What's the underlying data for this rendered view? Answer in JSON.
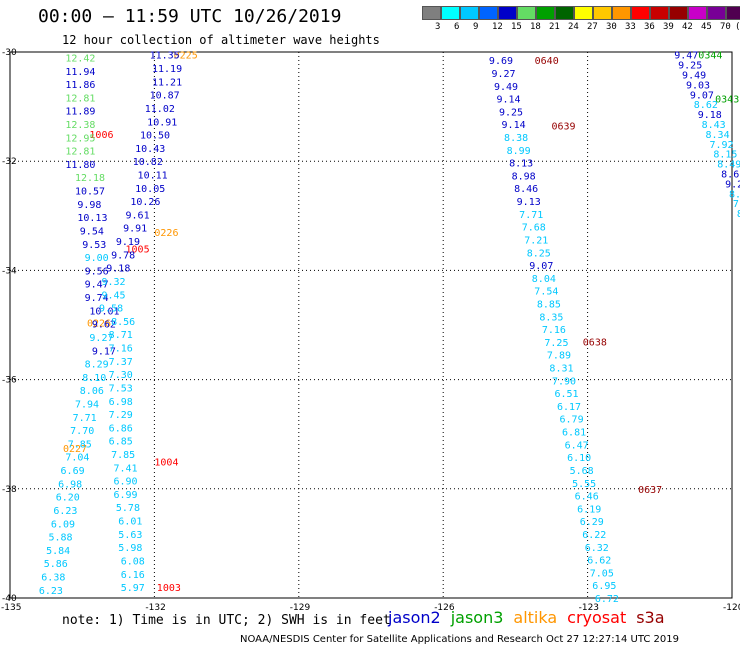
{
  "header": {
    "title": "00:00 – 11:59 UTC 10/26/2019",
    "subtitle": "12 hour collection of altimeter wave heights"
  },
  "legend_scale": {
    "swatches": [
      "#7f7f7f",
      "#00ffff",
      "#00c8ff",
      "#0064ff",
      "#0000c8",
      "#64dc64",
      "#00a000",
      "#006400",
      "#ffff00",
      "#ffc800",
      "#ff9600",
      "#ff0000",
      "#c80000",
      "#960000",
      "#c800c8",
      "#780096",
      "#500050",
      "#000000"
    ],
    "labels": [
      "3",
      "6",
      "9",
      "12",
      "15",
      "18",
      "21",
      "24",
      "27",
      "30",
      "33",
      "36",
      "39",
      "42",
      "45",
      "70",
      "(ft)"
    ]
  },
  "map": {
    "lon_ticks": [
      "-135",
      "-132",
      "-129",
      "-126",
      "-123",
      "-120"
    ],
    "lat_ticks": [
      "-30",
      "-32",
      "-34",
      "-36",
      "-38",
      "-40"
    ]
  },
  "footer": {
    "note": "note: 1) Time is in UTC; 2) SWH is in feet",
    "satellites": [
      {
        "name": "jason2",
        "color": "#0000c8"
      },
      {
        "name": "jason3",
        "color": "#00a000"
      },
      {
        "name": "altika",
        "color": "#ff9600"
      },
      {
        "name": "cryosat",
        "color": "#ff0000"
      },
      {
        "name": "s3a",
        "color": "#960000"
      }
    ],
    "credit": "NOAA/NESDIS Center for Satellite Applications and Research   Oct 27 12:27:14 UTC 2019"
  },
  "colors": {
    "green": "#00a000",
    "lightgreen": "#64dc64",
    "blue": "#0000c8",
    "midblue": "#0064ff",
    "skyblue": "#00c8ff",
    "cyan": "#00ffff",
    "orange": "#ff9600",
    "red": "#ff0000",
    "darkred": "#960000"
  },
  "chart_data": {
    "type": "scatter",
    "xlim": [
      -135,
      -120
    ],
    "ylim": [
      -40,
      -30
    ],
    "track_labels": [
      {
        "text": "0225",
        "lon": -131.6,
        "lat": -30.05,
        "color": "orange"
      },
      {
        "text": "0226",
        "lon": -132.0,
        "lat": -33.3,
        "color": "orange"
      },
      {
        "text": "0226",
        "lon": -133.4,
        "lat": -34.95,
        "color": "orange"
      },
      {
        "text": "0227",
        "lon": -133.9,
        "lat": -37.25,
        "color": "orange"
      },
      {
        "text": "1006",
        "lon": -133.35,
        "lat": -31.5,
        "color": "red"
      },
      {
        "text": "1005",
        "lon": -132.6,
        "lat": -33.6,
        "color": "red"
      },
      {
        "text": "1004",
        "lon": -132.0,
        "lat": -37.5,
        "color": "red"
      },
      {
        "text": "1003",
        "lon": -131.95,
        "lat": -39.8,
        "color": "red"
      },
      {
        "text": "0640",
        "lon": -124.1,
        "lat": -30.15,
        "color": "darkred"
      },
      {
        "text": "0639",
        "lon": -123.75,
        "lat": -31.35,
        "color": "darkred"
      },
      {
        "text": "0638",
        "lon": -123.1,
        "lat": -35.3,
        "color": "darkred"
      },
      {
        "text": "0637",
        "lon": -121.95,
        "lat": -38.0,
        "color": "darkred"
      },
      {
        "text": "0344",
        "lon": -120.7,
        "lat": -30.05,
        "color": "green"
      },
      {
        "text": "0343",
        "lon": -120.35,
        "lat": -30.85,
        "color": "green"
      }
    ],
    "series": [
      {
        "name": "track A",
        "lon0": -135.0,
        "lat0": -30.05,
        "dlon": 0.0,
        "dlat": 0.0,
        "values": [
          {
            "v": "12.42",
            "c": "lightgreen",
            "x": -133.85,
            "y": -30.1
          },
          {
            "v": "11.94",
            "c": "blue",
            "x": -133.85,
            "y": -30.25
          },
          {
            "v": "11.86",
            "c": "blue",
            "x": -133.85,
            "y": -30.4
          },
          {
            "v": "12.81",
            "c": "lightgreen",
            "x": -133.85,
            "y": -30.55
          },
          {
            "v": "11.89",
            "c": "blue",
            "x": -133.85,
            "y": -30.7
          },
          {
            "v": "12.38",
            "c": "lightgreen",
            "x": -133.85,
            "y": -30.85
          },
          {
            "v": "12.95",
            "c": "lightgreen",
            "x": -133.85,
            "y": -31.0
          },
          {
            "v": "12.81",
            "c": "lightgreen",
            "x": -133.85,
            "y": -31.15
          },
          {
            "v": "11.80",
            "c": "blue",
            "x": -133.85,
            "y": -31.3
          },
          {
            "v": "12.18",
            "c": "lightgreen",
            "x": -133.65,
            "y": -31.45
          },
          {
            "v": "10.57",
            "c": "blue",
            "x": -133.65,
            "y": -31.6
          },
          {
            "v": "9.98",
            "c": "blue",
            "x": -133.6,
            "y": -31.75
          },
          {
            "v": "10.13",
            "c": "blue",
            "x": -133.6,
            "y": -31.9
          },
          {
            "v": "9.54",
            "c": "blue",
            "x": -133.55,
            "y": -32.05
          },
          {
            "v": "9.53",
            "c": "blue",
            "x": -133.5,
            "y": -32.2
          },
          {
            "v": "9.00",
            "c": "skyblue",
            "x": -133.45,
            "y": -32.35
          },
          {
            "v": "9.56",
            "c": "blue",
            "x": -133.45,
            "y": -32.5
          },
          {
            "v": "9.47",
            "c": "blue",
            "x": -133.45,
            "y": -32.6
          },
          {
            "v": "9.74",
            "c": "blue",
            "x": -133.45,
            "y": -32.7
          },
          {
            "v": "10.01",
            "c": "blue",
            "x": -133.35,
            "y": -32.85
          },
          {
            "v": "9.62",
            "c": "blue",
            "x": -133.3,
            "y": -33.0
          },
          {
            "v": "9.27",
            "c": "skyblue",
            "x": -133.35,
            "y": -33.1
          },
          {
            "v": "9.17",
            "c": "blue",
            "x": -133.3,
            "y": -33.2
          },
          {
            "v": "8.29",
            "c": "skyblue",
            "x": -133.45,
            "y": -33.35
          },
          {
            "v": "8.10",
            "c": "skyblue",
            "x": -133.5,
            "y": -33.5
          },
          {
            "v": "8.06",
            "c": "skyblue",
            "x": -133.55,
            "y": -33.65
          },
          {
            "v": "7.94",
            "c": "skyblue",
            "x": -133.65,
            "y": -33.8
          },
          {
            "v": "7.71",
            "c": "skyblue",
            "x": -133.7,
            "y": -33.95
          },
          {
            "v": "7.70",
            "c": "skyblue",
            "x": -133.75,
            "y": -34.1
          },
          {
            "v": "7.85",
            "c": "skyblue",
            "x": -133.8,
            "y": -34.25
          },
          {
            "v": "7.04",
            "c": "skyblue",
            "x": -133.85,
            "y": -34.4
          },
          {
            "v": "6.69",
            "c": "skyblue",
            "x": -133.95,
            "y": -34.55
          },
          {
            "v": "6.98",
            "c": "skyblue",
            "x": -134.0,
            "y": -34.7
          },
          {
            "v": "6.20",
            "c": "skyblue",
            "x": -134.05,
            "y": -34.85
          },
          {
            "v": "6.23",
            "c": "skyblue",
            "x": -134.1,
            "y": -35.0
          },
          {
            "v": "6.09",
            "c": "skyblue",
            "x": -134.15,
            "y": -35.15
          },
          {
            "v": "5.88",
            "c": "skyblue",
            "x": -134.2,
            "y": -35.3
          },
          {
            "v": "5.84",
            "c": "skyblue",
            "x": -134.25,
            "y": -35.45
          },
          {
            "v": "5.86",
            "c": "skyblue",
            "x": -134.3,
            "y": -35.6
          },
          {
            "v": "6.38",
            "c": "skyblue",
            "x": -134.35,
            "y": -35.75
          },
          {
            "v": "6.23",
            "c": "skyblue",
            "x": -134.4,
            "y": -35.9
          }
        ]
      }
    ]
  }
}
